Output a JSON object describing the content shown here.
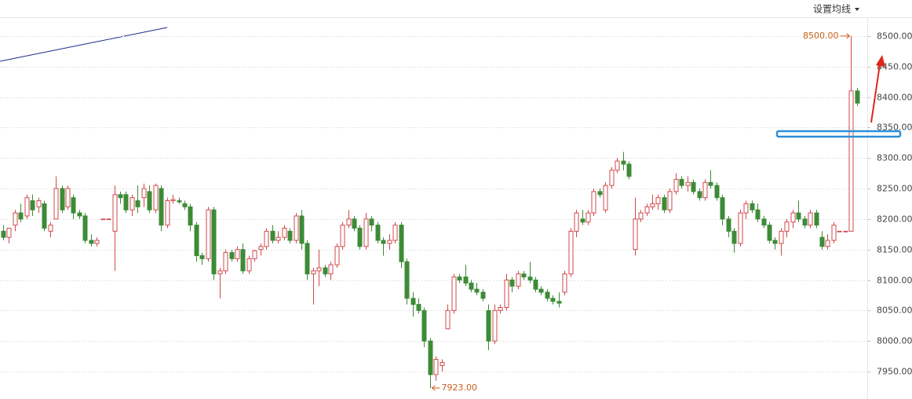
{
  "header": {
    "button": "设置均线"
  },
  "chart_data": {
    "type": "candlestick",
    "up_color": "#d0494d",
    "down_color": "#3d8b37",
    "grid": true,
    "ylim": [
      7905,
      8559
    ],
    "yticks": [
      {
        "value": 7950,
        "label": "7950.00"
      },
      {
        "value": 8000,
        "label": "8000.00"
      },
      {
        "value": 8050,
        "label": "8050.00"
      },
      {
        "value": 8100,
        "label": "8100.00"
      },
      {
        "value": 8150,
        "label": "8150.00"
      },
      {
        "value": 8200,
        "label": "8200.00"
      },
      {
        "value": 8250,
        "label": "8250.00"
      },
      {
        "value": 8300,
        "label": "8300.00"
      },
      {
        "value": 8350,
        "label": "8350.00"
      },
      {
        "value": 8400,
        "label": "8400.00"
      },
      {
        "value": 8450,
        "label": "8450.00"
      },
      {
        "value": 8500,
        "label": "8500.00"
      }
    ],
    "annotations": [
      {
        "text": "8500.00",
        "value": 8500,
        "kind": "high"
      },
      {
        "text": "7923.00",
        "value": 7923,
        "kind": "low"
      }
    ],
    "ohlc": [
      [
        8180,
        8190,
        8165,
        8170
      ],
      [
        8170,
        8185,
        8160,
        8185
      ],
      [
        8190,
        8215,
        8180,
        8210
      ],
      [
        8210,
        8225,
        8195,
        8200
      ],
      [
        8205,
        8240,
        8200,
        8235
      ],
      [
        8230,
        8240,
        8205,
        8215
      ],
      [
        8220,
        8235,
        8210,
        8230
      ],
      [
        8225,
        8230,
        8180,
        8185
      ],
      [
        8180,
        8195,
        8170,
        8190
      ],
      [
        8200,
        8270,
        8200,
        8250
      ],
      [
        8250,
        8255,
        8210,
        8215
      ],
      [
        8220,
        8255,
        8215,
        8250
      ],
      [
        8235,
        8240,
        8200,
        8210
      ],
      [
        8210,
        8215,
        8200,
        8205
      ],
      [
        8205,
        8210,
        8160,
        8165
      ],
      [
        8165,
        8175,
        8155,
        8160
      ],
      [
        8160,
        8170,
        8155,
        8165
      ],
      [
        8200,
        8200,
        8200,
        8200
      ],
      [
        8200,
        8200,
        8200,
        8200
      ],
      [
        8180,
        8255,
        8115,
        8240
      ],
      [
        8240,
        8245,
        8225,
        8235
      ],
      [
        8240,
        8245,
        8210,
        8215
      ],
      [
        8215,
        8240,
        8205,
        8235
      ],
      [
        8230,
        8255,
        8210,
        8220
      ],
      [
        8235,
        8258,
        8220,
        8250
      ],
      [
        8245,
        8255,
        8210,
        8215
      ],
      [
        8215,
        8258,
        8210,
        8255
      ],
      [
        8250,
        8255,
        8180,
        8190
      ],
      [
        8190,
        8235,
        8185,
        8230
      ],
      [
        8230,
        8240,
        8225,
        8232
      ],
      [
        8230,
        8235,
        8225,
        8228
      ],
      [
        8225,
        8230,
        8215,
        8220
      ],
      [
        8220,
        8225,
        8180,
        8190
      ],
      [
        8190,
        8195,
        8130,
        8140
      ],
      [
        8140,
        8145,
        8125,
        8135
      ],
      [
        8135,
        8220,
        8130,
        8215
      ],
      [
        8215,
        8220,
        8100,
        8110
      ],
      [
        8110,
        8120,
        8070,
        8115
      ],
      [
        8115,
        8150,
        8110,
        8145
      ],
      [
        8145,
        8150,
        8130,
        8135
      ],
      [
        8135,
        8155,
        8130,
        8150
      ],
      [
        8150,
        8160,
        8110,
        8115
      ],
      [
        8115,
        8140,
        8110,
        8135
      ],
      [
        8135,
        8150,
        8130,
        8148
      ],
      [
        8150,
        8160,
        8140,
        8155
      ],
      [
        8155,
        8185,
        8150,
        8180
      ],
      [
        8180,
        8190,
        8160,
        8165
      ],
      [
        8165,
        8180,
        8160,
        8170
      ],
      [
        8170,
        8190,
        8165,
        8185
      ],
      [
        8180,
        8185,
        8160,
        8165
      ],
      [
        8165,
        8210,
        8160,
        8205
      ],
      [
        8205,
        8215,
        8150,
        8160
      ],
      [
        8160,
        8165,
        8100,
        8110
      ],
      [
        8110,
        8120,
        8060,
        8115
      ],
      [
        8115,
        8150,
        8090,
        8120
      ],
      [
        8120,
        8125,
        8105,
        8110
      ],
      [
        8110,
        8130,
        8100,
        8125
      ],
      [
        8125,
        8160,
        8120,
        8155
      ],
      [
        8155,
        8195,
        8150,
        8190
      ],
      [
        8190,
        8215,
        8185,
        8200
      ],
      [
        8200,
        8205,
        8180,
        8185
      ],
      [
        8185,
        8190,
        8150,
        8155
      ],
      [
        8155,
        8210,
        8150,
        8200
      ],
      [
        8200,
        8205,
        8180,
        8190
      ],
      [
        8190,
        8195,
        8160,
        8165
      ],
      [
        8165,
        8170,
        8140,
        8160
      ],
      [
        8160,
        8175,
        8150,
        8165
      ],
      [
        8165,
        8195,
        8160,
        8190
      ],
      [
        8190,
        8195,
        8120,
        8130
      ],
      [
        8130,
        8135,
        8060,
        8070
      ],
      [
        8070,
        8080,
        8040,
        8060
      ],
      [
        8060,
        8070,
        8045,
        8050
      ],
      [
        8050,
        8055,
        7990,
        8000
      ],
      [
        8000,
        8005,
        7923,
        7945
      ],
      [
        7945,
        7975,
        7935,
        7970
      ],
      [
        7960,
        7970,
        7950,
        7965
      ],
      [
        8020,
        8060,
        8020,
        8050
      ],
      [
        8050,
        8110,
        8045,
        8105
      ],
      [
        8105,
        8110,
        8095,
        8100
      ],
      [
        8105,
        8125,
        8090,
        8095
      ],
      [
        8095,
        8100,
        8080,
        8085
      ],
      [
        8085,
        8095,
        8075,
        8080
      ],
      [
        8080,
        8085,
        8065,
        8070
      ],
      [
        8050,
        8060,
        7985,
        8000
      ],
      [
        8000,
        8060,
        7995,
        8050
      ],
      [
        8050,
        8060,
        8045,
        8055
      ],
      [
        8055,
        8110,
        8050,
        8100
      ],
      [
        8100,
        8105,
        8080,
        8090
      ],
      [
        8090,
        8115,
        8085,
        8110
      ],
      [
        8110,
        8115,
        8100,
        8105
      ],
      [
        8105,
        8130,
        8095,
        8100
      ],
      [
        8100,
        8105,
        8080,
        8085
      ],
      [
        8085,
        8090,
        8075,
        8080
      ],
      [
        8080,
        8085,
        8065,
        8070
      ],
      [
        8070,
        8075,
        8060,
        8065
      ],
      [
        8065,
        8080,
        8055,
        8062
      ],
      [
        8080,
        8115,
        8075,
        8110
      ],
      [
        8110,
        8185,
        8105,
        8180
      ],
      [
        8180,
        8215,
        8170,
        8210
      ],
      [
        8200,
        8215,
        8190,
        8195
      ],
      [
        8195,
        8215,
        8190,
        8210
      ],
      [
        8210,
        8250,
        8205,
        8245
      ],
      [
        8245,
        8250,
        8235,
        8240
      ],
      [
        8215,
        8260,
        8210,
        8255
      ],
      [
        8255,
        8285,
        8250,
        8280
      ],
      [
        8280,
        8300,
        8275,
        8295
      ],
      [
        8295,
        8310,
        8280,
        8290
      ],
      [
        8290,
        8295,
        8265,
        8270
      ],
      [
        8150,
        8235,
        8140,
        8200
      ],
      [
        8200,
        8215,
        8195,
        8210
      ],
      [
        8210,
        8225,
        8205,
        8220
      ],
      [
        8220,
        8240,
        8215,
        8225
      ],
      [
        8225,
        8240,
        8215,
        8235
      ],
      [
        8235,
        8240,
        8210,
        8215
      ],
      [
        8215,
        8250,
        8210,
        8245
      ],
      [
        8245,
        8275,
        8240,
        8265
      ],
      [
        8265,
        8270,
        8250,
        8255
      ],
      [
        8255,
        8270,
        8245,
        8260
      ],
      [
        8260,
        8265,
        8240,
        8245
      ],
      [
        8245,
        8250,
        8230,
        8235
      ],
      [
        8235,
        8265,
        8230,
        8260
      ],
      [
        8260,
        8280,
        8250,
        8255
      ],
      [
        8255,
        8260,
        8230,
        8235
      ],
      [
        8235,
        8240,
        8190,
        8200
      ],
      [
        8200,
        8205,
        8170,
        8180
      ],
      [
        8180,
        8185,
        8145,
        8160
      ],
      [
        8160,
        8215,
        8155,
        8210
      ],
      [
        8210,
        8230,
        8200,
        8225
      ],
      [
        8225,
        8230,
        8210,
        8215
      ],
      [
        8215,
        8225,
        8195,
        8200
      ],
      [
        8200,
        8205,
        8185,
        8190
      ],
      [
        8190,
        8195,
        8160,
        8165
      ],
      [
        8165,
        8170,
        8150,
        8160
      ],
      [
        8160,
        8185,
        8140,
        8180
      ],
      [
        8180,
        8200,
        8170,
        8195
      ],
      [
        8195,
        8215,
        8185,
        8210
      ],
      [
        8210,
        8230,
        8195,
        8200
      ],
      [
        8200,
        8205,
        8185,
        8190
      ],
      [
        8190,
        8215,
        8185,
        8210
      ],
      [
        8210,
        8215,
        8185,
        8190
      ],
      [
        8170,
        8180,
        8150,
        8155
      ],
      [
        8155,
        8175,
        8150,
        8165
      ],
      [
        8165,
        8195,
        8160,
        8190
      ],
      [
        8180,
        8180,
        8180,
        8180
      ],
      [
        8180,
        8180,
        8180,
        8180
      ],
      [
        8180,
        8500,
        8180,
        8410
      ],
      [
        8410,
        8415,
        8385,
        8390
      ]
    ]
  }
}
